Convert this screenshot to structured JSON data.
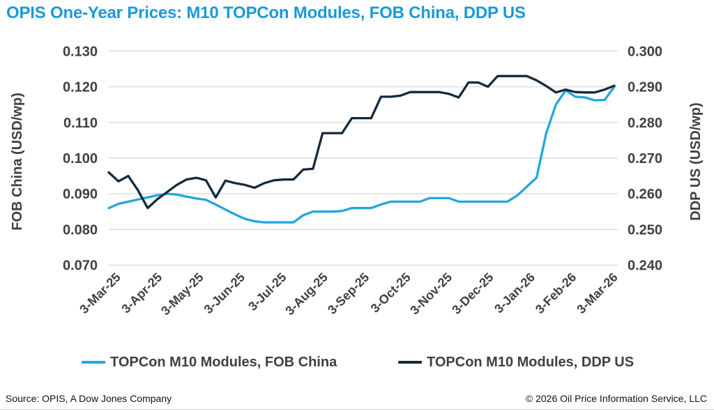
{
  "page": {
    "title": "OPIS One-Year Prices: M10 TOPCon Modules, FOB China, DDP US",
    "footer_left": "Source: OPIS, A Dow Jones Company",
    "footer_right": "© 2026 Oil Price Information Service, LLC"
  },
  "chart_data": {
    "type": "line",
    "title": "OPIS One-Year Prices: M10 TOPCon Modules, FOB China, DDP US",
    "grid": "horizontal",
    "legend_position": "bottom",
    "x_axis": {
      "tick_labels": [
        "3-Mar-25",
        "3-Apr-25",
        "3-May-25",
        "3-Jun-25",
        "3-Jul-25",
        "3-Aug-25",
        "3-Sep-25",
        "3-Oct-25",
        "3-Nov-25",
        "3-Dec-25",
        "3-Jan-26",
        "3-Feb-26",
        "3-Mar-26"
      ],
      "frequency_of_points": "weekly"
    },
    "y_axis_left": {
      "label": "FOB China (USD/wp)",
      "ticks": [
        "0.130",
        "0.120",
        "0.110",
        "0.100",
        "0.090",
        "0.080",
        "0.070"
      ],
      "range": [
        0.07,
        0.13
      ]
    },
    "y_axis_right": {
      "label": "DDP US (USD/wp)",
      "ticks": [
        "0.300",
        "0.290",
        "0.280",
        "0.270",
        "0.260",
        "0.250",
        "0.240"
      ],
      "range": [
        0.24,
        0.3
      ]
    },
    "legend": [
      {
        "name": "TOPCon M10 Modules, FOB China",
        "color": "#22a5de"
      },
      {
        "name": "TOPCon M10 Modules, DDP US",
        "color": "#13293c"
      }
    ],
    "series": [
      {
        "name": "TOPCon M10 Modules, FOB China",
        "axis": "left",
        "color": "#22a5de",
        "values": [
          0.086,
          0.0872,
          0.0878,
          0.0884,
          0.089,
          0.0896,
          0.09,
          0.0898,
          0.0892,
          0.0887,
          0.0883,
          0.087,
          0.0856,
          0.0842,
          0.083,
          0.0823,
          0.082,
          0.082,
          0.082,
          0.082,
          0.084,
          0.085,
          0.085,
          0.085,
          0.0852,
          0.086,
          0.086,
          0.086,
          0.087,
          0.0878,
          0.0878,
          0.0878,
          0.0878,
          0.0888,
          0.0888,
          0.0888,
          0.0878,
          0.0878,
          0.0878,
          0.0878,
          0.0878,
          0.0878,
          0.0895,
          0.092,
          0.0945,
          0.107,
          0.115,
          0.119,
          0.1172,
          0.117,
          0.1162,
          0.1163,
          0.12
        ]
      },
      {
        "name": "TOPCon M10 Modules, DDP US",
        "axis": "right",
        "color": "#13293c",
        "values": [
          0.266,
          0.2635,
          0.265,
          0.261,
          0.256,
          0.2585,
          0.2605,
          0.2625,
          0.264,
          0.2645,
          0.2638,
          0.259,
          0.2637,
          0.263,
          0.2625,
          0.2617,
          0.263,
          0.2638,
          0.264,
          0.264,
          0.2668,
          0.267,
          0.277,
          0.277,
          0.277,
          0.2812,
          0.2812,
          0.2812,
          0.2872,
          0.2872,
          0.2875,
          0.2885,
          0.2885,
          0.2885,
          0.2885,
          0.288,
          0.287,
          0.2912,
          0.2912,
          0.29,
          0.293,
          0.293,
          0.293,
          0.293,
          0.2918,
          0.2902,
          0.2884,
          0.2892,
          0.2885,
          0.2884,
          0.2884,
          0.2892,
          0.2903
        ]
      }
    ]
  }
}
